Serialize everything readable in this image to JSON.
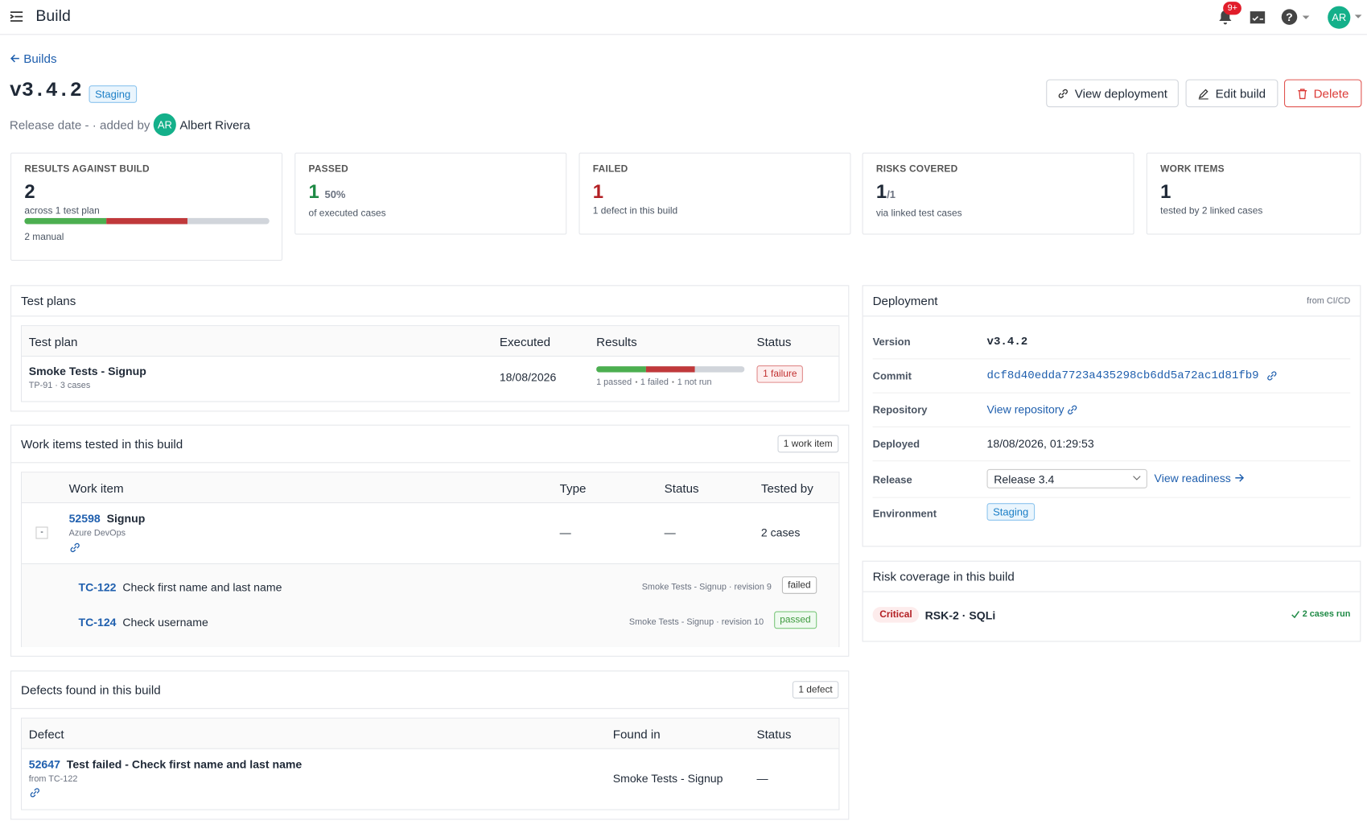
{
  "topbar": {
    "title": "Build",
    "notification_count": "9+",
    "avatar": "AR"
  },
  "breadcrumb": "Builds",
  "header": {
    "version": "v3.4.2",
    "environment": "Staging",
    "meta": "Release date - · added by",
    "author_initials": "AR",
    "author": "Albert Rivera"
  },
  "actions": [
    "View deployment",
    "Edit build",
    "Delete"
  ],
  "stats": [
    {
      "label": "RESULTS AGAINST BUILD",
      "value": 2,
      "detail": "across 1 test plan",
      "note": "2 manual"
    },
    {
      "label": "PASSED",
      "value": 1,
      "suffix": "50%",
      "detail": "of executed cases"
    },
    {
      "label": "FAILED",
      "value": 1,
      "detail": "1 defect in this build"
    },
    {
      "label": "RISKS COVERED",
      "value": 1,
      "suffix": "/1",
      "detail": "via linked test cases"
    },
    {
      "label": "WORK ITEMS",
      "value": 1,
      "detail": "tested by 2 linked cases"
    }
  ],
  "test_plans": {
    "title": "Test plans",
    "columns": [
      "Test plan",
      "Executed",
      "Results",
      "Status"
    ],
    "rows": [
      {
        "name": "Smoke Tests - Signup",
        "meta": "TP-91 · 3 cases",
        "executed": "18/08/2026",
        "results": [
          "1 passed",
          "1 failed",
          "1 not run"
        ],
        "status": "1 failure"
      }
    ]
  },
  "work_items": {
    "title": "Work items tested in this build",
    "count": "1 work item",
    "columns": [
      "Work item",
      "Type",
      "Status",
      "Tested by"
    ],
    "rows": [
      {
        "toggle": "-",
        "id": "52598",
        "name": "Signup",
        "source": "Azure DevOps",
        "type": "—",
        "status": "—",
        "tested_by": "2 cases",
        "cases": [
          {
            "id": "TC-122",
            "name": "Check first name and last name",
            "meta": "Smoke Tests - Signup · revision 9",
            "result": "failed"
          },
          {
            "id": "TC-124",
            "name": "Check username",
            "meta": "Smoke Tests - Signup · revision 10",
            "result": "passed"
          }
        ]
      }
    ]
  },
  "defects": {
    "title": "Defects found in this build",
    "count": "1 defect",
    "columns": [
      "Defect",
      "Found in",
      "Status"
    ],
    "rows": [
      {
        "id": "52647",
        "name": "Test failed - Check first name and last name",
        "source": "from TC-122",
        "found_in": "Smoke Tests - Signup",
        "status": "—"
      }
    ]
  },
  "deployment": {
    "title": "Deployment",
    "source": "from CI/CD",
    "fields": [
      {
        "label": "Version",
        "value": "v3.4.2"
      },
      {
        "label": "Commit",
        "value": "dcf8d40edda7723a435298cb6dd5a72ac1d81fb9"
      },
      {
        "label": "Repository",
        "value": "View repository"
      },
      {
        "label": "Deployed",
        "value": "18/08/2026, 01:29:53"
      },
      {
        "label": "Release",
        "value": "Release 3.4",
        "link": "View readiness"
      },
      {
        "label": "Environment",
        "value": "Staging"
      }
    ]
  },
  "risks": {
    "title": "Risk coverage in this build",
    "rows": [
      {
        "severity": "Critical",
        "name": "RSK-2 · SQLi",
        "coverage": "2 cases run"
      }
    ]
  }
}
